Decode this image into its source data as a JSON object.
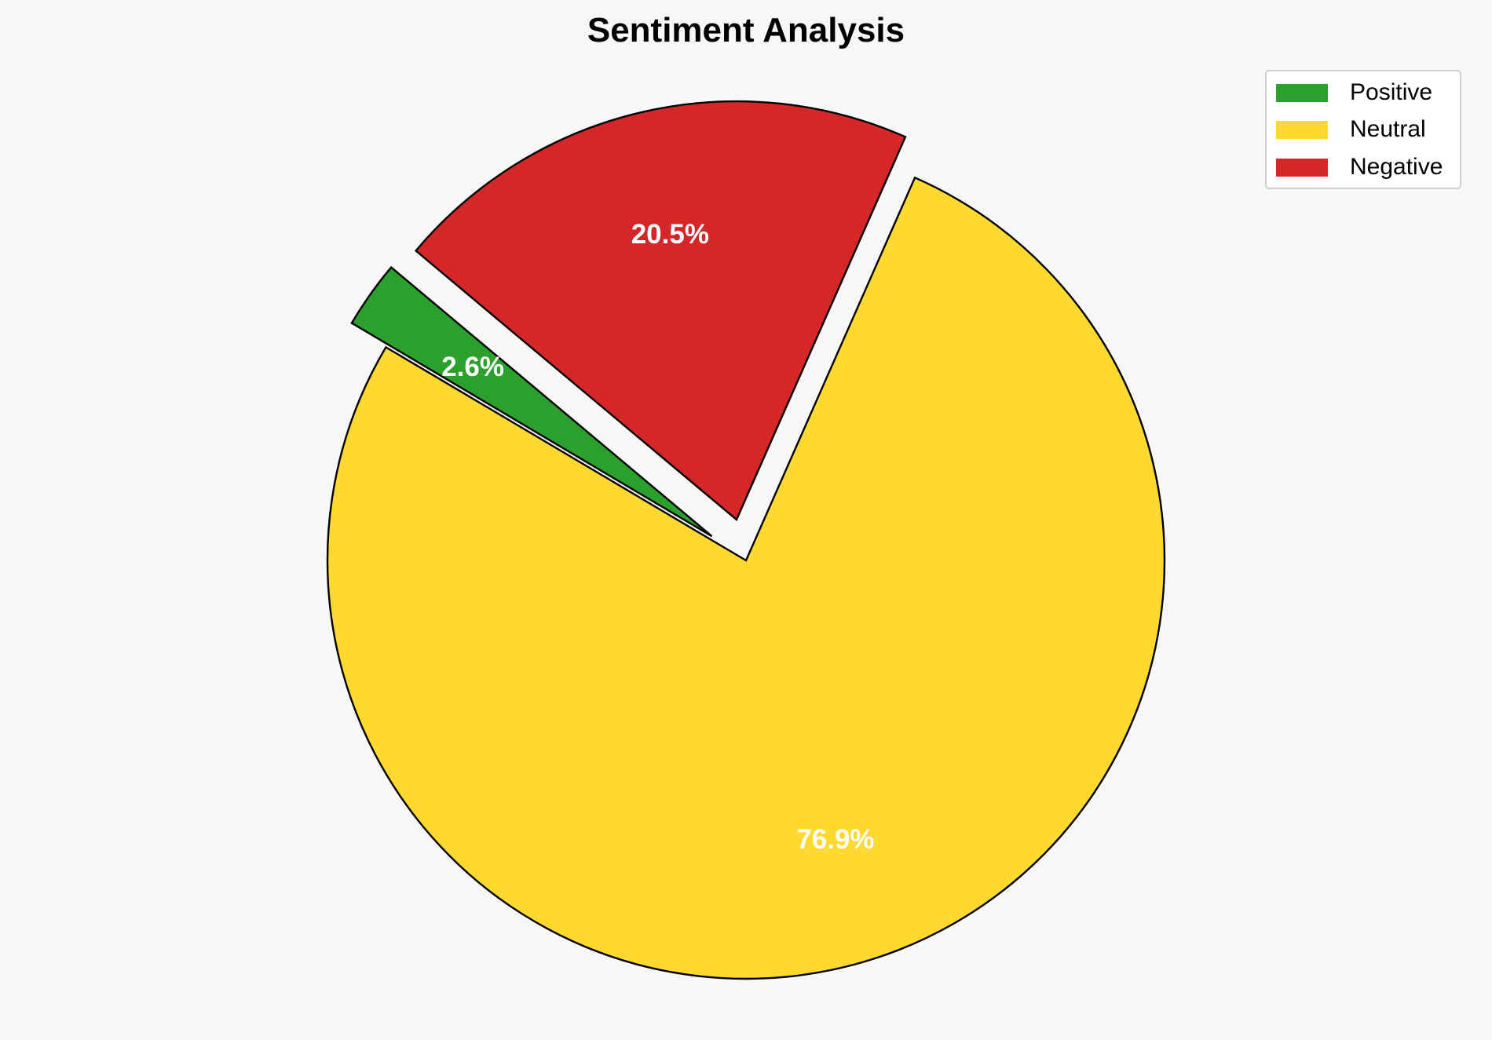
{
  "chart_data": {
    "type": "pie",
    "title": "Sentiment Analysis",
    "categories": [
      "Positive",
      "Neutral",
      "Negative"
    ],
    "values": [
      2.6,
      76.9,
      20.5
    ],
    "labels": [
      "2.6%",
      "76.9%",
      "20.5%"
    ],
    "colors": [
      "#2ca02c",
      "#ffd92f",
      "#d62728"
    ],
    "explode": [
      0.1,
      0,
      0.1
    ],
    "start_angle": 140,
    "direction": "counterclockwise",
    "legend_placement": "top-right",
    "edge_color": "#000000",
    "label_color": "#ffffff",
    "background": "#f7f7f7"
  }
}
